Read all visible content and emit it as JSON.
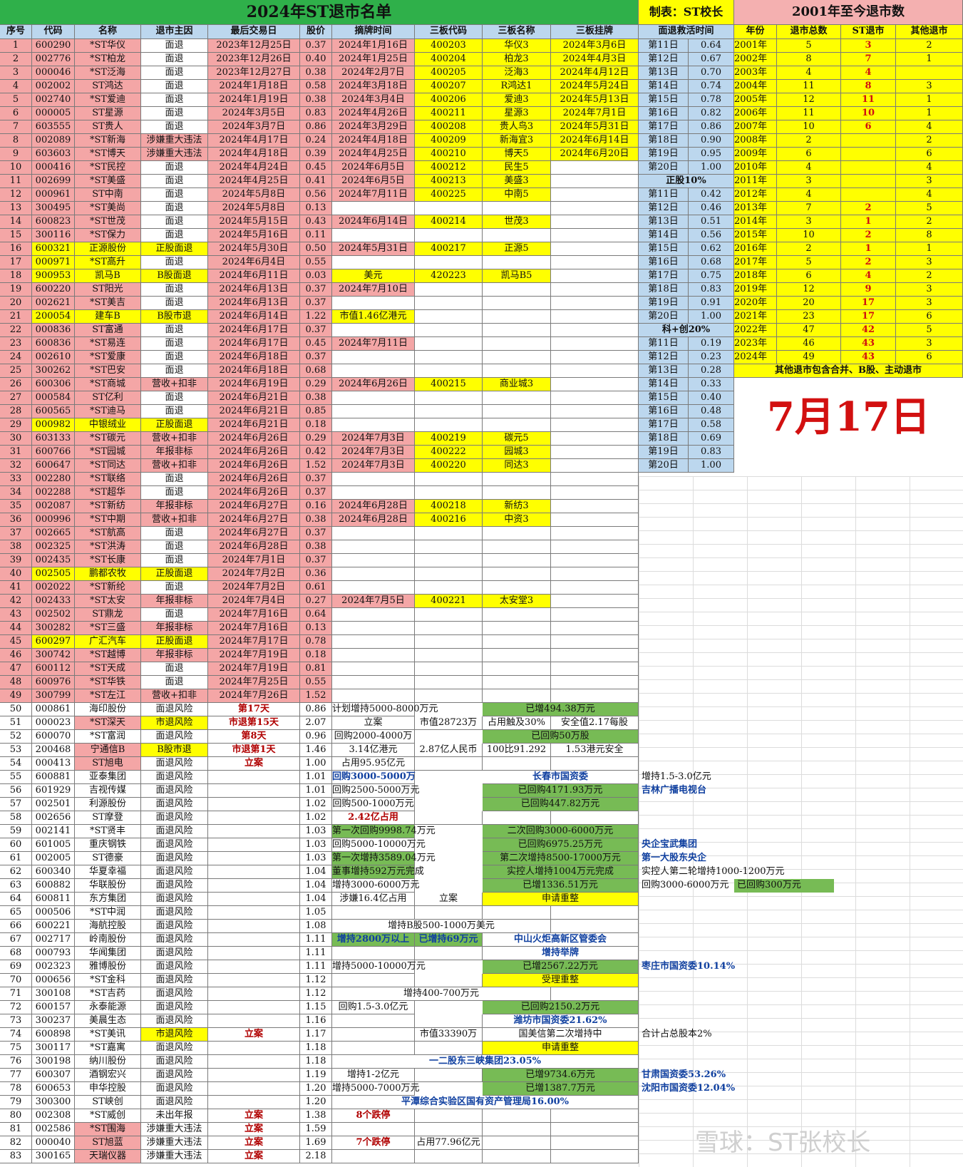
{
  "title": "2024年ST退市名单",
  "maker": "制表：ST校长",
  "stats_title": "2001年至今退市数",
  "date": "7月17日",
  "watermark": "雪球：ST张校长",
  "headers": [
    "序号",
    "代码",
    "名称",
    "退市主因",
    "最后交易日",
    "股价",
    "摘牌时间",
    "三板代码",
    "三板名称",
    "三板挂牌"
  ],
  "rescue_header": "面退救活时间",
  "stats_headers": [
    "年份",
    "退市总数",
    "ST退市",
    "其他退市"
  ],
  "stats_note": "其他退市包含合并、B股、主动退市",
  "rows": [
    [
      "1",
      "600290",
      "*ST华仪",
      "面退",
      "2023年12月25日",
      "0.37",
      "2024年1月16日",
      "400203",
      "华仪3",
      "2024年3月6日"
    ],
    [
      "2",
      "002776",
      "*ST柏龙",
      "面退",
      "2023年12月26日",
      "0.40",
      "2024年1月25日",
      "400204",
      "柏龙3",
      "2024年4月3日"
    ],
    [
      "3",
      "000046",
      "*ST泛海",
      "面退",
      "2023年12月27日",
      "0.38",
      "2024年2月7日",
      "400205",
      "泛海3",
      "2024年4月12日"
    ],
    [
      "4",
      "002002",
      "ST鸿达",
      "面退",
      "2024年1月18日",
      "0.58",
      "2024年3月18日",
      "400207",
      "R鸿达1",
      "2024年5月24日"
    ],
    [
      "5",
      "002740",
      "*ST爱迪",
      "面退",
      "2024年1月19日",
      "0.38",
      "2024年3月4日",
      "400206",
      "爱迪3",
      "2024年5月13日"
    ],
    [
      "6",
      "000005",
      "ST星源",
      "面退",
      "2024年3月5日",
      "0.83",
      "2024年4月26日",
      "400211",
      "星源3",
      "2024年7月1日"
    ],
    [
      "7",
      "603555",
      "ST贵人",
      "面退",
      "2024年3月7日",
      "0.86",
      "2024年3月29日",
      "400208",
      "贵人鸟3",
      "2024年5月31日"
    ],
    [
      "8",
      "002089",
      "*ST新海",
      "涉嫌重大违法",
      "2024年4月17日",
      "0.24",
      "2024年4月18日",
      "400209",
      "新海宜3",
      "2024年6月14日"
    ],
    [
      "9",
      "603603",
      "*ST博天",
      "涉嫌重大违法",
      "2024年4月18日",
      "0.39",
      "2024年4月25日",
      "400210",
      "博天5",
      "2024年6月20日"
    ],
    [
      "10",
      "000416",
      "*ST民控",
      "面退",
      "2024年4月24日",
      "0.45",
      "2024年6月5日",
      "400212",
      "民生5",
      ""
    ],
    [
      "11",
      "002699",
      "*ST美盛",
      "面退",
      "2024年4月25日",
      "0.41",
      "2024年6月5日",
      "400213",
      "美盛3",
      ""
    ],
    [
      "12",
      "000961",
      "ST中南",
      "面退",
      "2024年5月8日",
      "0.56",
      "2024年7月11日",
      "400225",
      "中南5",
      ""
    ],
    [
      "13",
      "300495",
      "*ST美尚",
      "面退",
      "2024年5月8日",
      "0.13",
      "",
      "",
      "",
      ""
    ],
    [
      "14",
      "600823",
      "*ST世茂",
      "面退",
      "2024年5月15日",
      "0.43",
      "2024年6月14日",
      "400214",
      "世茂3",
      ""
    ],
    [
      "15",
      "300116",
      "*ST保力",
      "面退",
      "2024年5月16日",
      "0.11",
      "",
      "",
      "",
      ""
    ],
    [
      "16",
      "600321",
      "正源股份",
      "正股面退",
      "2024年5月30日",
      "0.50",
      "2024年5月31日",
      "400217",
      "正源5",
      ""
    ],
    [
      "17",
      "000971",
      "*ST高升",
      "面退",
      "2024年6月4日",
      "0.55",
      "",
      "",
      "",
      ""
    ],
    [
      "18",
      "900953",
      "凯马B",
      "B股面退",
      "2024年6月11日",
      "0.03",
      "美元",
      "420223",
      "凯马B5",
      ""
    ],
    [
      "19",
      "600220",
      "ST阳光",
      "面退",
      "2024年6月13日",
      "0.37",
      "2024年7月10日",
      "",
      "",
      ""
    ],
    [
      "20",
      "002621",
      "*ST美吉",
      "面退",
      "2024年6月13日",
      "0.37",
      "",
      "",
      "",
      ""
    ],
    [
      "21",
      "200054",
      "建车B",
      "B股市退",
      "2024年6月14日",
      "1.22",
      "市值1.46亿港元",
      "",
      "",
      ""
    ],
    [
      "22",
      "000836",
      "ST富通",
      "面退",
      "2024年6月17日",
      "0.37",
      "",
      "",
      "",
      ""
    ],
    [
      "23",
      "600836",
      "*ST易连",
      "面退",
      "2024年6月17日",
      "0.45",
      "2024年7月11日",
      "",
      "",
      ""
    ],
    [
      "24",
      "002610",
      "*ST爱康",
      "面退",
      "2024年6月18日",
      "0.37",
      "",
      "",
      "",
      ""
    ],
    [
      "25",
      "300262",
      "*ST巴安",
      "面退",
      "2024年6月18日",
      "0.68",
      "",
      "",
      "",
      ""
    ],
    [
      "26",
      "600306",
      "*ST商城",
      "营收+扣非",
      "2024年6月19日",
      "0.29",
      "2024年6月26日",
      "400215",
      "商业城3",
      ""
    ],
    [
      "27",
      "000584",
      "ST亿利",
      "面退",
      "2024年6月21日",
      "0.38",
      "",
      "",
      "",
      ""
    ],
    [
      "28",
      "600565",
      "*ST迪马",
      "面退",
      "2024年6月21日",
      "0.85",
      "",
      "",
      "",
      ""
    ],
    [
      "29",
      "000982",
      "中银绒业",
      "正股面退",
      "2024年6月21日",
      "0.18",
      "",
      "",
      "",
      ""
    ],
    [
      "30",
      "603133",
      "*ST碳元",
      "营收+扣非",
      "2024年6月26日",
      "0.29",
      "2024年7月3日",
      "400219",
      "碳元5",
      ""
    ],
    [
      "31",
      "600766",
      "*ST园城",
      "年报非标",
      "2024年6月26日",
      "0.42",
      "2024年7月3日",
      "400222",
      "园城3",
      ""
    ],
    [
      "32",
      "600647",
      "*ST同达",
      "营收+扣非",
      "2024年6月26日",
      "1.52",
      "2024年7月3日",
      "400220",
      "同达3",
      ""
    ],
    [
      "33",
      "002280",
      "*ST联络",
      "面退",
      "2024年6月26日",
      "0.37",
      "",
      "",
      "",
      ""
    ],
    [
      "34",
      "002288",
      "*ST超华",
      "面退",
      "2024年6月26日",
      "0.37",
      "",
      "",
      "",
      ""
    ],
    [
      "35",
      "002087",
      "*ST新纺",
      "年报非标",
      "2024年6月27日",
      "0.16",
      "2024年6月28日",
      "400218",
      "新纺3",
      ""
    ],
    [
      "36",
      "000996",
      "*ST中期",
      "营收+扣非",
      "2024年6月27日",
      "0.38",
      "2024年6月28日",
      "400216",
      "中资3",
      ""
    ],
    [
      "37",
      "002665",
      "*ST航高",
      "面退",
      "2024年6月27日",
      "0.37",
      "",
      "",
      "",
      ""
    ],
    [
      "38",
      "002325",
      "*ST洪涛",
      "面退",
      "2024年6月28日",
      "0.38",
      "",
      "",
      "",
      ""
    ],
    [
      "39",
      "002435",
      "*ST长康",
      "面退",
      "2024年7月1日",
      "0.37",
      "",
      "",
      "",
      ""
    ],
    [
      "40",
      "002505",
      "鹏都农牧",
      "正股面退",
      "2024年7月2日",
      "0.36",
      "",
      "",
      "",
      ""
    ],
    [
      "41",
      "002022",
      "*ST新纶",
      "面退",
      "2024年7月2日",
      "0.61",
      "",
      "",
      "",
      ""
    ],
    [
      "42",
      "002433",
      "*ST太安",
      "年报非标",
      "2024年7月4日",
      "0.27",
      "2024年7月5日",
      "400221",
      "太安堂3",
      ""
    ],
    [
      "43",
      "002502",
      "ST鼎龙",
      "面退",
      "2024年7月16日",
      "0.64",
      "",
      "",
      "",
      ""
    ],
    [
      "44",
      "300282",
      "*ST三盛",
      "年报非标",
      "2024年7月16日",
      "0.13",
      "",
      "",
      "",
      ""
    ],
    [
      "45",
      "600297",
      "广汇汽车",
      "正股面退",
      "2024年7月17日",
      "0.78",
      "",
      "",
      "",
      ""
    ],
    [
      "46",
      "300742",
      "*ST越博",
      "年报非标",
      "2024年7月19日",
      "0.18",
      "",
      "",
      "",
      ""
    ],
    [
      "47",
      "600112",
      "*ST天成",
      "面退",
      "2024年7月19日",
      "0.81",
      "",
      "",
      "",
      ""
    ],
    [
      "48",
      "600976",
      "*ST华铁",
      "面退",
      "2024年7月25日",
      "0.55",
      "",
      "",
      "",
      ""
    ],
    [
      "49",
      "300799",
      "*ST左江",
      "营收+扣非",
      "2024年7月26日",
      "1.52",
      "",
      "",
      "",
      ""
    ]
  ],
  "rows2": [
    [
      "50",
      "000861",
      "海印股份",
      "面退风险",
      "第17天",
      "0.86",
      "计划增持5000-8000万元",
      "",
      "已增494.38万元",
      ""
    ],
    [
      "51",
      "000023",
      "*ST深天",
      "市退风险",
      "市退第15天",
      "2.07",
      "立案",
      "市值28723万",
      "占用触及30%",
      "安全值2.17每股"
    ],
    [
      "52",
      "600070",
      "*ST富润",
      "面退风险",
      "第8天",
      "0.96",
      "回购2000-4000万",
      "",
      "已回购50万股",
      ""
    ],
    [
      "53",
      "200468",
      "宁通信B",
      "B股市退",
      "市退第1天",
      "1.46",
      "3.14亿港元",
      "2.87亿人民币",
      "100比91.292",
      "1.53港元安全"
    ],
    [
      "54",
      "000413",
      "ST旭电",
      "面退风险",
      "立案",
      "1.00",
      "占用95.95亿元",
      "",
      "",
      ""
    ],
    [
      "55",
      "600881",
      "亚泰集团",
      "面退风险",
      "",
      "1.01",
      "回购3000-5000万",
      "",
      "长春市国资委",
      ""
    ],
    [
      "56",
      "601929",
      "吉视传媒",
      "面退风险",
      "",
      "1.01",
      "回购2500-5000万元",
      "",
      "已回购4171.93万元",
      ""
    ],
    [
      "57",
      "002501",
      "利源股份",
      "面退风险",
      "",
      "1.02",
      "回购500-1000万元",
      "",
      "已回购447.82万元",
      ""
    ],
    [
      "58",
      "002656",
      "ST摩登",
      "面退风险",
      "",
      "1.02",
      "2.42亿占用",
      "",
      "",
      ""
    ],
    [
      "59",
      "002141",
      "*ST贤丰",
      "面退风险",
      "",
      "1.03",
      "第一次回购9998.74万元",
      "",
      "二次回购3000-6000万元",
      ""
    ],
    [
      "60",
      "601005",
      "重庆钢铁",
      "面退风险",
      "",
      "1.03",
      "回购5000-10000万元",
      "",
      "已回购6975.25万元",
      ""
    ],
    [
      "61",
      "002005",
      "ST德豪",
      "面退风险",
      "",
      "1.03",
      "第一次增持3589.04万元",
      "",
      "第二次增持8500-17000万元",
      ""
    ],
    [
      "62",
      "600340",
      "华夏幸福",
      "面退风险",
      "",
      "1.04",
      "董事增持592万元完成",
      "",
      "实控人增持1004万元完成",
      ""
    ],
    [
      "63",
      "600882",
      "华联股份",
      "面退风险",
      "",
      "1.04",
      "增持3000-6000万元",
      "",
      "已增1336.51万元",
      ""
    ],
    [
      "64",
      "600811",
      "东方集团",
      "面退风险",
      "",
      "1.04",
      "涉嫌16.4亿占用",
      "立案",
      "申请重整",
      ""
    ],
    [
      "65",
      "000506",
      "*ST中润",
      "面退风险",
      "",
      "1.05",
      "",
      "",
      "",
      ""
    ],
    [
      "66",
      "600221",
      "海航控股",
      "面退风险",
      "",
      "1.08",
      "增持B股500-1000万美元",
      "",
      "",
      ""
    ],
    [
      "67",
      "002717",
      "岭南股份",
      "面退风险",
      "",
      "1.11",
      "增持2800万以上",
      "已增持69万元",
      "中山火炬高新区管委会",
      ""
    ],
    [
      "68",
      "000793",
      "华闻集团",
      "面退风险",
      "",
      "1.11",
      "",
      "",
      "增持举牌",
      ""
    ],
    [
      "69",
      "002323",
      "雅博股份",
      "面退风险",
      "",
      "1.11",
      "增持5000-10000万元",
      "",
      "已增2567.22万元",
      ""
    ],
    [
      "70",
      "000656",
      "*ST金科",
      "面退风险",
      "",
      "1.12",
      "",
      "",
      "受理重整",
      ""
    ],
    [
      "71",
      "300108",
      "*ST吉药",
      "面退风险",
      "",
      "1.12",
      "增持400-700万元",
      "",
      "",
      ""
    ],
    [
      "72",
      "600157",
      "永泰能源",
      "面退风险",
      "",
      "1.15",
      "回购1.5-3.0亿元",
      "",
      "已回购2150.2万元",
      ""
    ],
    [
      "73",
      "300237",
      "美晨生态",
      "面退风险",
      "",
      "1.16",
      "",
      "",
      "潍坊市国资委21.62%",
      ""
    ],
    [
      "74",
      "600898",
      "*ST美讯",
      "市退风险",
      "立案",
      "1.17",
      "",
      "市值33390万",
      "国美信第二次增持中",
      ""
    ],
    [
      "75",
      "300117",
      "*ST嘉寓",
      "面退风险",
      "",
      "1.18",
      "",
      "",
      "申请重整",
      ""
    ],
    [
      "76",
      "300198",
      "纳川股份",
      "面退风险",
      "",
      "1.18",
      "一二股东三峡集团23.05%",
      "",
      "",
      ""
    ],
    [
      "77",
      "600307",
      "酒钢宏兴",
      "面退风险",
      "",
      "1.19",
      "增持1-2亿元",
      "",
      "已增9734.6万元",
      ""
    ],
    [
      "78",
      "600653",
      "申华控股",
      "面退风险",
      "",
      "1.20",
      "增持5000-7000万元",
      "",
      "已增1387.7万元",
      ""
    ],
    [
      "79",
      "300300",
      "ST峡创",
      "面退风险",
      "",
      "1.20",
      "平潭综合实验区国有资产管理局16.00%",
      "",
      "",
      ""
    ],
    [
      "80",
      "002308",
      "*ST威创",
      "未出年报",
      "立案",
      "1.38",
      "8个跌停",
      "",
      "",
      ""
    ],
    [
      "81",
      "002586",
      "*ST围海",
      "涉嫌重大违法",
      "立案",
      "1.59",
      "",
      "",
      "",
      ""
    ],
    [
      "82",
      "000040",
      "ST旭蓝",
      "涉嫌重大违法",
      "立案",
      "1.69",
      "7个跌停",
      "占用77.96亿元",
      "",
      ""
    ],
    [
      "83",
      "300165",
      "天瑞仪器",
      "涉嫌重大违法",
      "立案",
      "2.18",
      "",
      "",
      "",
      ""
    ]
  ],
  "notes": {
    "r55": "增持1.5-3.0亿元",
    "r56": "吉林广播电视台",
    "r60": "央企宝武集团",
    "r61": "第一大股东央企",
    "r62": "实控人第二轮增持1000-1200万元",
    "r63a": "回购3000-6000万元",
    "r63b": "已回购300万元",
    "r69": "枣庄市国资委10.14%",
    "r74": "合计占总股本2%",
    "r77": "甘肃国资委53.26%",
    "r78": "沈阳市国资委12.04%"
  },
  "rescue": [
    [
      "第11日",
      "0.64"
    ],
    [
      "第12日",
      "0.67"
    ],
    [
      "第13日",
      "0.70"
    ],
    [
      "第14日",
      "0.74"
    ],
    [
      "第15日",
      "0.78"
    ],
    [
      "第16日",
      "0.82"
    ],
    [
      "第17日",
      "0.86"
    ],
    [
      "第18日",
      "0.90"
    ],
    [
      "第19日",
      "0.95"
    ],
    [
      "第20日",
      "1.00"
    ],
    [
      "正股10%",
      ""
    ],
    [
      "第11日",
      "0.42"
    ],
    [
      "第12日",
      "0.46"
    ],
    [
      "第13日",
      "0.51"
    ],
    [
      "第14日",
      "0.56"
    ],
    [
      "第15日",
      "0.62"
    ],
    [
      "第16日",
      "0.68"
    ],
    [
      "第17日",
      "0.75"
    ],
    [
      "第18日",
      "0.83"
    ],
    [
      "第19日",
      "0.91"
    ],
    [
      "第20日",
      "1.00"
    ],
    [
      "科+创20%",
      ""
    ],
    [
      "第11日",
      "0.19"
    ],
    [
      "第12日",
      "0.23"
    ],
    [
      "第13日",
      "0.28"
    ],
    [
      "第14日",
      "0.33"
    ],
    [
      "第15日",
      "0.40"
    ],
    [
      "第16日",
      "0.48"
    ],
    [
      "第17日",
      "0.58"
    ],
    [
      "第18日",
      "0.69"
    ],
    [
      "第19日",
      "0.83"
    ],
    [
      "第20日",
      "1.00"
    ]
  ],
  "stats": [
    [
      "2001年",
      "5",
      "3",
      "2"
    ],
    [
      "2002年",
      "8",
      "7",
      "1"
    ],
    [
      "2003年",
      "4",
      "4",
      ""
    ],
    [
      "2004年",
      "11",
      "8",
      "3"
    ],
    [
      "2005年",
      "12",
      "11",
      "1"
    ],
    [
      "2006年",
      "11",
      "10",
      "1"
    ],
    [
      "2007年",
      "10",
      "6",
      "4"
    ],
    [
      "2008年",
      "2",
      "",
      "2"
    ],
    [
      "2009年",
      "6",
      "",
      "6"
    ],
    [
      "2010年",
      "4",
      "",
      "4"
    ],
    [
      "2011年",
      "3",
      "",
      "3"
    ],
    [
      "2012年",
      "4",
      "",
      "4"
    ],
    [
      "2013年",
      "7",
      "2",
      "5"
    ],
    [
      "2014年",
      "3",
      "1",
      "2"
    ],
    [
      "2015年",
      "10",
      "2",
      "8"
    ],
    [
      "2016年",
      "2",
      "1",
      "1"
    ],
    [
      "2017年",
      "5",
      "2",
      "3"
    ],
    [
      "2018年",
      "6",
      "4",
      "2"
    ],
    [
      "2019年",
      "12",
      "9",
      "3"
    ],
    [
      "2020年",
      "20",
      "17",
      "3"
    ],
    [
      "2021年",
      "23",
      "17",
      "6"
    ],
    [
      "2022年",
      "47",
      "42",
      "5"
    ],
    [
      "2023年",
      "46",
      "43",
      "3"
    ],
    [
      "2024年",
      "49",
      "43",
      "6"
    ]
  ]
}
